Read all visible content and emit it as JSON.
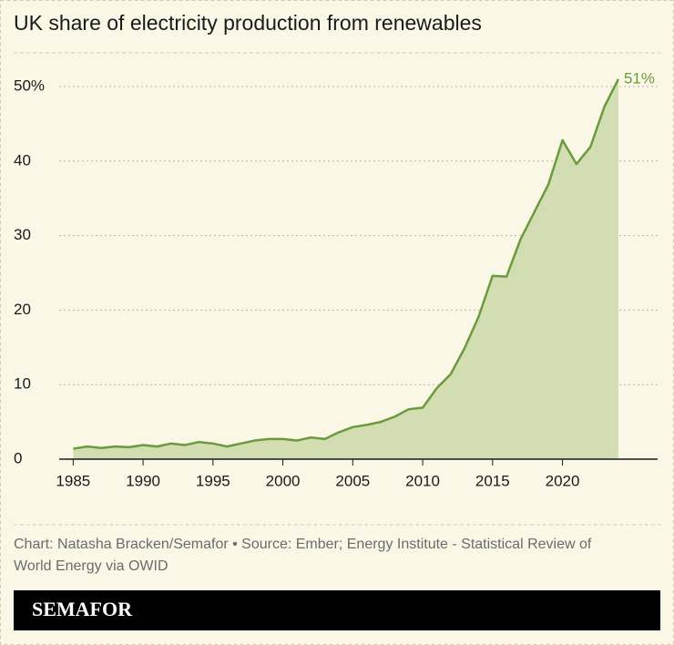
{
  "chart_data": {
    "type": "area",
    "title": "UK share of electricity production from renewables",
    "x": [
      1985,
      1986,
      1987,
      1988,
      1989,
      1990,
      1991,
      1992,
      1993,
      1994,
      1995,
      1996,
      1997,
      1998,
      1999,
      2000,
      2001,
      2002,
      2003,
      2004,
      2005,
      2006,
      2007,
      2008,
      2009,
      2010,
      2011,
      2012,
      2013,
      2014,
      2015,
      2016,
      2017,
      2018,
      2019,
      2020,
      2021,
      2022,
      2023,
      2024
    ],
    "values": [
      1.4,
      1.7,
      1.5,
      1.7,
      1.6,
      1.9,
      1.7,
      2.1,
      1.9,
      2.3,
      2.1,
      1.7,
      2.1,
      2.5,
      2.7,
      2.7,
      2.5,
      2.9,
      2.7,
      3.6,
      4.3,
      4.6,
      5.0,
      5.7,
      6.7,
      6.9,
      9.5,
      11.4,
      14.9,
      19.1,
      24.6,
      24.5,
      29.5,
      33.2,
      36.9,
      42.8,
      39.6,
      41.9,
      47.3,
      51
    ],
    "value_labels": [
      null,
      null,
      null,
      null,
      null,
      null,
      null,
      null,
      null,
      null,
      null,
      null,
      null,
      null,
      null,
      null,
      null,
      null,
      null,
      null,
      null,
      null,
      null,
      null,
      null,
      null,
      null,
      null,
      null,
      null,
      null,
      null,
      null,
      null,
      null,
      null,
      null,
      null,
      null,
      "51%"
    ],
    "color": "#6b9a3d",
    "fill": "#d3ddb2",
    "xlim": [
      1984,
      2027
    ],
    "xticks": [
      1985,
      1990,
      1995,
      2000,
      2005,
      2010,
      2015,
      2020
    ],
    "ylim": [
      0,
      52
    ],
    "yticks": [
      0,
      10,
      20,
      30,
      40,
      {
        "value": 50,
        "label": "50%"
      }
    ],
    "grid": true,
    "source": [
      "Chart: Natasha Bracken/Semafor • Source: Ember; Energy Institute - Statistical Review of",
      "World Energy via OWID"
    ],
    "brand": "SEMAFOR"
  }
}
